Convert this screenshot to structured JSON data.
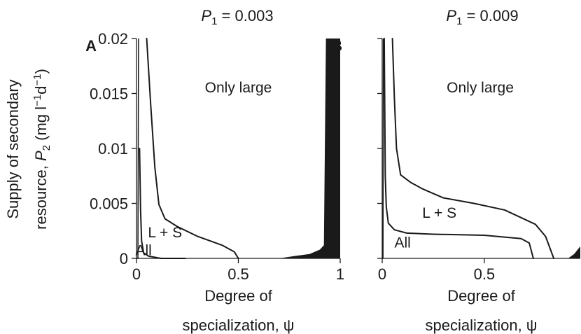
{
  "ylabel_line1": "Supply of secondary",
  "ylabel_line2_prefix": "resource, ",
  "ylabel_line2_sym": "P",
  "ylabel_line2_sub": "2",
  "ylabel_line2_unit": " (mg l",
  "ylabel_line2_exp1": "−1",
  "ylabel_line2_d": "d",
  "ylabel_line2_exp2": "−1",
  "ylabel_line2_close": ")",
  "chart_data": [
    {
      "type": "area",
      "panel_letter": "A",
      "title_sym": "P",
      "title_sub": "1",
      "title_rest": " = 0.003",
      "xlabel_line1": "Degree of",
      "xlabel_line2": "specialization, ψ",
      "xlim": [
        0,
        1
      ],
      "ylim": [
        0,
        0.02
      ],
      "xticks": [
        0,
        0.5,
        1
      ],
      "xtick_labels": [
        "0",
        "0.5",
        "1"
      ],
      "yticks": [
        0,
        0.005,
        0.01,
        0.015,
        0.02
      ],
      "ytick_labels": [
        "0",
        "0.005",
        "0.01",
        "0.015",
        "0.02"
      ],
      "region_labels": [
        {
          "text": "Only large",
          "x": 0.5,
          "y": 0.0151
        },
        {
          "text": "L + S",
          "x": 0.14,
          "y": 0.0019
        },
        {
          "text": "All",
          "x": 0.035,
          "y": 0.0003
        }
      ],
      "boundaries": [
        {
          "name": "Large / L + S",
          "x": [
            0.05,
            0.07,
            0.09,
            0.11,
            0.14,
            0.2,
            0.3,
            0.42,
            0.48,
            0.5
          ],
          "y": [
            0.02,
            0.0139,
            0.0083,
            0.0049,
            0.0036,
            0.0029,
            0.002,
            0.0012,
            0.0006,
            0.0
          ]
        },
        {
          "name": "L + S / All",
          "x": [
            0.015,
            0.02,
            0.025,
            0.035,
            0.06,
            0.12,
            0.24
          ],
          "y": [
            0.01,
            0.0044,
            0.0016,
            0.0005,
            0.0002,
            0.0,
            0.0
          ]
        },
        {
          "name": "edge",
          "x": [
            0.0,
            0.007,
            0.01
          ],
          "y": [
            0.0,
            0.0,
            0.02
          ]
        }
      ],
      "black_region": {
        "x": [
          0.7,
          0.77,
          0.85,
          0.9,
          0.92,
          0.93,
          1.0,
          1.0
        ],
        "y": [
          0.0,
          0.0002,
          0.0004,
          0.0008,
          0.0012,
          0.02,
          0.02,
          0.0
        ]
      }
    },
    {
      "type": "area",
      "panel_letter": "B",
      "title_sym": "P",
      "title_sub": "1",
      "title_rest": " = 0.009",
      "xlabel_line1": "Degree of",
      "xlabel_line2": "specialization, ψ",
      "xlim": [
        0,
        0.97
      ],
      "ylim": [
        0,
        0.02
      ],
      "xticks": [
        0,
        0.5
      ],
      "xtick_labels": [
        "0",
        "0.5"
      ],
      "yticks": [
        0,
        0.005,
        0.01,
        0.015,
        0.02
      ],
      "ytick_labels": [],
      "region_labels": [
        {
          "text": "Only large",
          "x": 0.48,
          "y": 0.0151
        },
        {
          "text": "L + S",
          "x": 0.28,
          "y": 0.0037
        },
        {
          "text": "All",
          "x": 0.1,
          "y": 0.001
        }
      ],
      "boundaries": [
        {
          "name": "Large / L + S",
          "x": [
            0.05,
            0.06,
            0.07,
            0.09,
            0.14,
            0.2,
            0.3,
            0.45,
            0.6,
            0.75,
            0.8,
            0.83,
            0.84
          ],
          "y": [
            0.02,
            0.0144,
            0.01,
            0.0076,
            0.0069,
            0.0063,
            0.0055,
            0.005,
            0.0044,
            0.0031,
            0.002,
            0.0005,
            0.0
          ]
        },
        {
          "name": "L + S / All",
          "x": [
            0.01,
            0.015,
            0.02,
            0.03,
            0.06,
            0.12,
            0.25,
            0.5,
            0.68,
            0.72,
            0.73,
            0.74
          ],
          "y": [
            0.02,
            0.0075,
            0.0047,
            0.0032,
            0.0026,
            0.0023,
            0.0022,
            0.0021,
            0.0018,
            0.0014,
            0.0007,
            0.0
          ]
        },
        {
          "name": "edge",
          "x": [
            0.0,
            0.004,
            0.006
          ],
          "y": [
            0.0,
            0.0,
            0.02
          ]
        }
      ],
      "black_region": {
        "x": [
          0.91,
          0.94,
          0.97,
          0.97
        ],
        "y": [
          0.0,
          0.0004,
          0.0011,
          0.0
        ]
      }
    }
  ]
}
